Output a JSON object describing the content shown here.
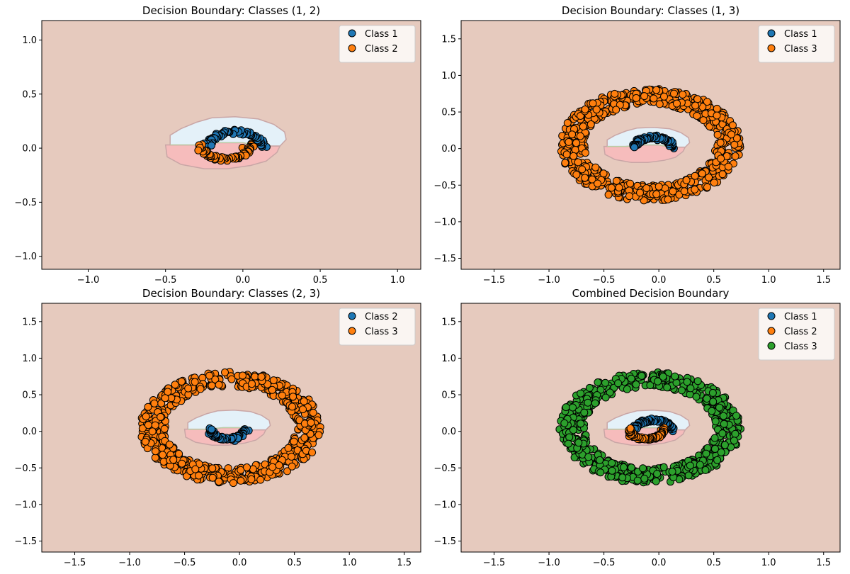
{
  "figure": {
    "background": "#ffffff"
  },
  "colors": {
    "plot_background": "#e6cabe",
    "region_class_a": "#e4f1f9",
    "region_class_b": "#f6bcbc",
    "region_border": "#c9a6a6",
    "region_border_green": "#b8cfa4",
    "class_blue": "#1f77b4",
    "class_orange": "#ff7f0e",
    "class_green": "#2ca02c",
    "marker_edge": "#000000"
  },
  "chart_data": [
    {
      "type": "scatter",
      "title": "Decision Boundary: Classes (1, 2)",
      "xlim": [
        -1.3,
        1.15
      ],
      "ylim": [
        -1.12,
        1.18
      ],
      "xticks": [
        -1.0,
        -0.5,
        0.0,
        0.5,
        1.0
      ],
      "yticks": [
        -1.0,
        -0.5,
        0.0,
        0.5,
        1.0
      ],
      "xtick_labels": [
        "−1.0",
        "−0.5",
        "0.0",
        "0.5",
        "1.0"
      ],
      "ytick_labels": [
        "−1.0",
        "−0.5",
        "0.0",
        "0.5",
        "1.0"
      ],
      "grid": false,
      "legend_position": "top-right",
      "series": [
        {
          "name": "Class 1",
          "color": "#1f77b4",
          "shape": "upper_moon",
          "n": 90
        },
        {
          "name": "Class 2",
          "color": "#ff7f0e",
          "shape": "lower_moon",
          "n": 90
        }
      ]
    },
    {
      "type": "scatter",
      "title": "Decision Boundary: Classes (1, 3)",
      "xlim": [
        -1.8,
        1.65
      ],
      "ylim": [
        -1.65,
        1.75
      ],
      "xticks": [
        -1.5,
        -1.0,
        -0.5,
        0.0,
        0.5,
        1.0,
        1.5
      ],
      "yticks": [
        -1.5,
        -1.0,
        -0.5,
        0.0,
        0.5,
        1.0,
        1.5
      ],
      "xtick_labels": [
        "−1.5",
        "−1.0",
        "−0.5",
        "0.0",
        "0.5",
        "1.0",
        "1.5"
      ],
      "ytick_labels": [
        "−1.5",
        "−1.0",
        "−0.5",
        "0.0",
        "0.5",
        "1.0",
        "1.5"
      ],
      "grid": false,
      "legend_position": "top-right",
      "series": [
        {
          "name": "Class 1",
          "color": "#1f77b4",
          "shape": "upper_moon",
          "n": 90
        },
        {
          "name": "Class 3",
          "color": "#ff7f0e",
          "shape": "ring",
          "n": 650
        }
      ]
    },
    {
      "type": "scatter",
      "title": "Decision Boundary: Classes (2, 3)",
      "xlim": [
        -1.8,
        1.65
      ],
      "ylim": [
        -1.65,
        1.75
      ],
      "xticks": [
        -1.5,
        -1.0,
        -0.5,
        0.0,
        0.5,
        1.0,
        1.5
      ],
      "yticks": [
        -1.5,
        -1.0,
        -0.5,
        0.0,
        0.5,
        1.0,
        1.5
      ],
      "xtick_labels": [
        "−1.5",
        "−1.0",
        "−0.5",
        "0.0",
        "0.5",
        "1.0",
        "1.5"
      ],
      "ytick_labels": [
        "−1.5",
        "−1.0",
        "−0.5",
        "0.0",
        "0.5",
        "1.0",
        "1.5"
      ],
      "grid": false,
      "legend_position": "top-right",
      "series": [
        {
          "name": "Class 2",
          "color": "#1f77b4",
          "shape": "lower_moon",
          "n": 90
        },
        {
          "name": "Class 3",
          "color": "#ff7f0e",
          "shape": "ring",
          "n": 650
        }
      ]
    },
    {
      "type": "scatter",
      "title": "Combined Decision Boundary",
      "xlim": [
        -1.8,
        1.65
      ],
      "ylim": [
        -1.65,
        1.75
      ],
      "xticks": [
        -1.5,
        -1.0,
        -0.5,
        0.0,
        0.5,
        1.0,
        1.5
      ],
      "yticks": [
        -1.5,
        -1.0,
        -0.5,
        0.0,
        0.5,
        1.0,
        1.5
      ],
      "xtick_labels": [
        "−1.5",
        "−1.0",
        "−0.5",
        "0.0",
        "0.5",
        "1.0",
        "1.5"
      ],
      "ytick_labels": [
        "−1.5",
        "−1.0",
        "−0.5",
        "0.0",
        "0.5",
        "1.0",
        "1.5"
      ],
      "grid": false,
      "legend_position": "top-right",
      "series": [
        {
          "name": "Class 1",
          "color": "#1f77b4",
          "shape": "upper_moon",
          "n": 90
        },
        {
          "name": "Class 2",
          "color": "#ff7f0e",
          "shape": "lower_moon",
          "n": 90
        },
        {
          "name": "Class 3",
          "color": "#2ca02c",
          "shape": "ring",
          "n": 650
        }
      ]
    }
  ]
}
